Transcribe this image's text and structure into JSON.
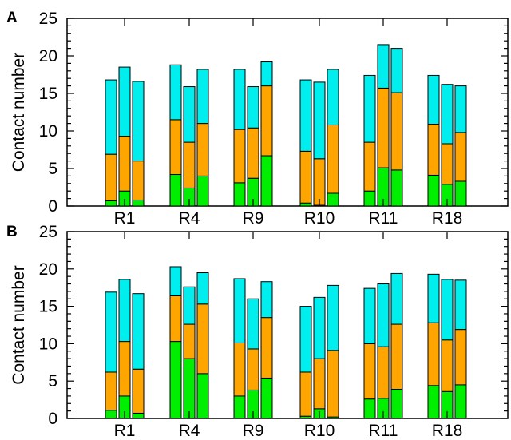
{
  "chart_data": [
    {
      "type": "bar",
      "panel_label": "A",
      "ylabel": "Contact number",
      "ylim": [
        0,
        25
      ],
      "yticks": [
        "0",
        "5",
        "10",
        "15",
        "20",
        "25"
      ],
      "stacked": true,
      "bars_per_group": 3,
      "categories": [
        "R1",
        "R4",
        "R9",
        "R10",
        "R11",
        "R18"
      ],
      "series_colors": [
        "#00ee00",
        "#ffa500",
        "#00eeee"
      ],
      "stack_tops": [
        [
          [
            0.7,
            6.9,
            16.8
          ],
          [
            2.0,
            9.3,
            18.5
          ],
          [
            0.8,
            6.0,
            16.6
          ]
        ],
        [
          [
            4.2,
            11.5,
            18.8
          ],
          [
            2.4,
            8.5,
            15.9
          ],
          [
            4.0,
            11.0,
            18.2
          ]
        ],
        [
          [
            3.1,
            10.2,
            18.2
          ],
          [
            3.7,
            10.4,
            15.9
          ],
          [
            6.7,
            16.0,
            19.2
          ]
        ],
        [
          [
            0.4,
            7.3,
            16.8
          ],
          [
            0.1,
            6.3,
            16.5
          ],
          [
            1.7,
            10.8,
            18.2
          ]
        ],
        [
          [
            2.0,
            8.5,
            17.4
          ],
          [
            5.1,
            15.7,
            21.5
          ],
          [
            4.8,
            15.1,
            21.0
          ]
        ],
        [
          [
            4.1,
            10.9,
            17.4
          ],
          [
            2.9,
            8.3,
            16.2
          ],
          [
            3.3,
            9.8,
            16.0
          ]
        ]
      ]
    },
    {
      "type": "bar",
      "panel_label": "B",
      "ylabel": "Contact number",
      "ylim": [
        0,
        25
      ],
      "yticks": [
        "0",
        "5",
        "10",
        "15",
        "20",
        "25"
      ],
      "stacked": true,
      "bars_per_group": 3,
      "categories": [
        "R1",
        "R4",
        "R9",
        "R10",
        "R11",
        "R18"
      ],
      "series_colors": [
        "#00ee00",
        "#ffa500",
        "#00eeee"
      ],
      "stack_tops": [
        [
          [
            1.1,
            6.2,
            16.9
          ],
          [
            3.0,
            10.3,
            18.6
          ],
          [
            0.7,
            6.6,
            16.7
          ]
        ],
        [
          [
            10.3,
            16.4,
            20.3
          ],
          [
            8.0,
            12.6,
            17.6
          ],
          [
            6.0,
            15.3,
            19.5
          ]
        ],
        [
          [
            3.0,
            10.1,
            18.7
          ],
          [
            3.8,
            9.3,
            16.0
          ],
          [
            5.4,
            13.5,
            18.3
          ]
        ],
        [
          [
            0.3,
            6.2,
            15.0
          ],
          [
            1.3,
            8.0,
            16.2
          ],
          [
            0.2,
            9.1,
            17.8
          ]
        ],
        [
          [
            2.6,
            10.0,
            17.4
          ],
          [
            2.7,
            9.6,
            18.0
          ],
          [
            3.9,
            12.6,
            19.4
          ]
        ],
        [
          [
            4.4,
            12.8,
            19.3
          ],
          [
            3.6,
            10.5,
            18.6
          ],
          [
            4.5,
            11.9,
            18.5
          ]
        ]
      ]
    }
  ]
}
